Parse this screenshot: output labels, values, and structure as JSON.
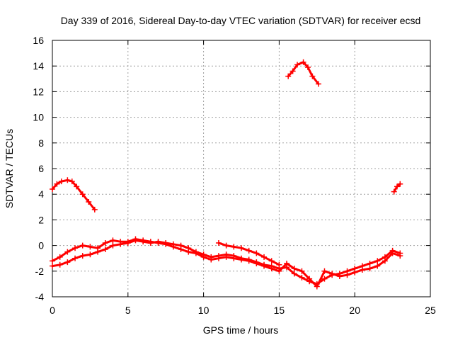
{
  "chart_data": {
    "type": "scatter",
    "title": "Day 339 of 2016, Sidereal Day-to-day VTEC variation (SDTVAR) for receiver ecsd",
    "xlabel": "GPS time / hours",
    "ylabel": "SDTVAR / TECUs",
    "xlim": [
      0,
      25
    ],
    "ylim": [
      -4,
      16
    ],
    "xticks": [
      0,
      5,
      10,
      15,
      20,
      25
    ],
    "yticks": [
      -4,
      -2,
      0,
      2,
      4,
      6,
      8,
      10,
      12,
      14,
      16
    ],
    "grid": true,
    "color": "#ff0000",
    "marker": "plus",
    "series": [
      {
        "name": "segment-1",
        "x": [
          0,
          0.3,
          0.6,
          1.0,
          1.3,
          1.6,
          2.0,
          2.4,
          2.8
        ],
        "y": [
          4.4,
          4.8,
          5.0,
          5.1,
          5.0,
          4.6,
          4.0,
          3.4,
          2.8
        ]
      },
      {
        "name": "segment-2",
        "x": [
          15.6,
          15.9,
          16.2,
          16.6,
          16.9,
          17.2,
          17.6
        ],
        "y": [
          13.2,
          13.6,
          14.1,
          14.3,
          13.9,
          13.2,
          12.6
        ]
      },
      {
        "name": "segment-3",
        "x": [
          22.6,
          22.8,
          23.0
        ],
        "y": [
          4.2,
          4.6,
          4.8
        ]
      },
      {
        "name": "segment-4",
        "x": [
          0,
          0.5,
          1.0,
          1.5,
          2.0,
          2.5,
          3.0,
          3.5,
          4.0,
          4.5,
          5.0,
          5.5,
          6.0,
          6.5,
          7.0,
          7.5,
          8.0,
          8.5,
          9.0,
          9.5,
          10.0,
          10.5,
          11.0,
          11.5,
          12.0,
          12.5,
          13.0,
          13.5,
          14.0,
          14.5,
          15.0,
          15.5,
          16.0,
          16.5,
          17.0,
          17.5,
          18.0,
          18.5,
          19.0,
          19.5,
          20.0,
          20.5,
          21.0,
          21.5,
          22.0,
          22.5,
          23.0
        ],
        "y": [
          -1.6,
          -1.5,
          -1.3,
          -1.0,
          -0.8,
          -0.7,
          -0.5,
          -0.3,
          0.0,
          0.1,
          0.2,
          0.4,
          0.3,
          0.2,
          0.3,
          0.2,
          0.1,
          0.0,
          -0.2,
          -0.5,
          -0.7,
          -0.9,
          -0.8,
          -0.7,
          -0.8,
          -1.0,
          -1.1,
          -1.3,
          -1.5,
          -1.6,
          -1.8,
          -1.7,
          -2.2,
          -2.5,
          -2.8,
          -3.0,
          -2.6,
          -2.3,
          -2.2,
          -2.0,
          -1.8,
          -1.6,
          -1.4,
          -1.2,
          -0.9,
          -0.4,
          -0.6
        ]
      },
      {
        "name": "segment-5",
        "x": [
          0,
          0.5,
          1.0,
          1.5,
          2.0,
          2.5,
          3.0,
          3.5,
          4.0,
          4.5,
          5.0,
          5.5,
          6.0,
          6.5,
          7.0,
          7.5,
          8.0,
          8.5,
          9.0,
          9.5,
          10.0,
          10.5,
          11.0,
          11.5,
          12.0,
          12.5,
          13.0,
          13.5,
          14.0,
          14.5,
          15.0,
          15.5,
          16.0,
          16.5,
          17.0,
          17.5,
          18.0,
          18.5,
          19.0,
          19.5,
          20.0,
          20.5,
          21.0,
          21.5,
          22.0,
          22.5,
          23.0
        ],
        "y": [
          -1.2,
          -0.9,
          -0.5,
          -0.2,
          0.0,
          -0.1,
          -0.2,
          0.2,
          0.4,
          0.3,
          0.3,
          0.5,
          0.4,
          0.3,
          0.2,
          0.1,
          -0.1,
          -0.3,
          -0.5,
          -0.6,
          -0.9,
          -1.1,
          -1.0,
          -0.9,
          -1.0,
          -1.1,
          -1.2,
          -1.4,
          -1.6,
          -1.8,
          -2.0,
          -1.4,
          -1.8,
          -2.0,
          -2.6,
          -3.2,
          -2.0,
          -2.2,
          -2.4,
          -2.3,
          -2.1,
          -1.9,
          -1.8,
          -1.6,
          -1.2,
          -0.6,
          -0.8
        ]
      },
      {
        "name": "segment-6",
        "x": [
          11.0,
          11.5,
          12.0,
          12.5,
          13.0,
          13.5,
          14.0,
          14.5,
          15.0
        ],
        "y": [
          0.2,
          0.0,
          -0.1,
          -0.2,
          -0.4,
          -0.6,
          -0.9,
          -1.2,
          -1.5
        ]
      }
    ]
  }
}
